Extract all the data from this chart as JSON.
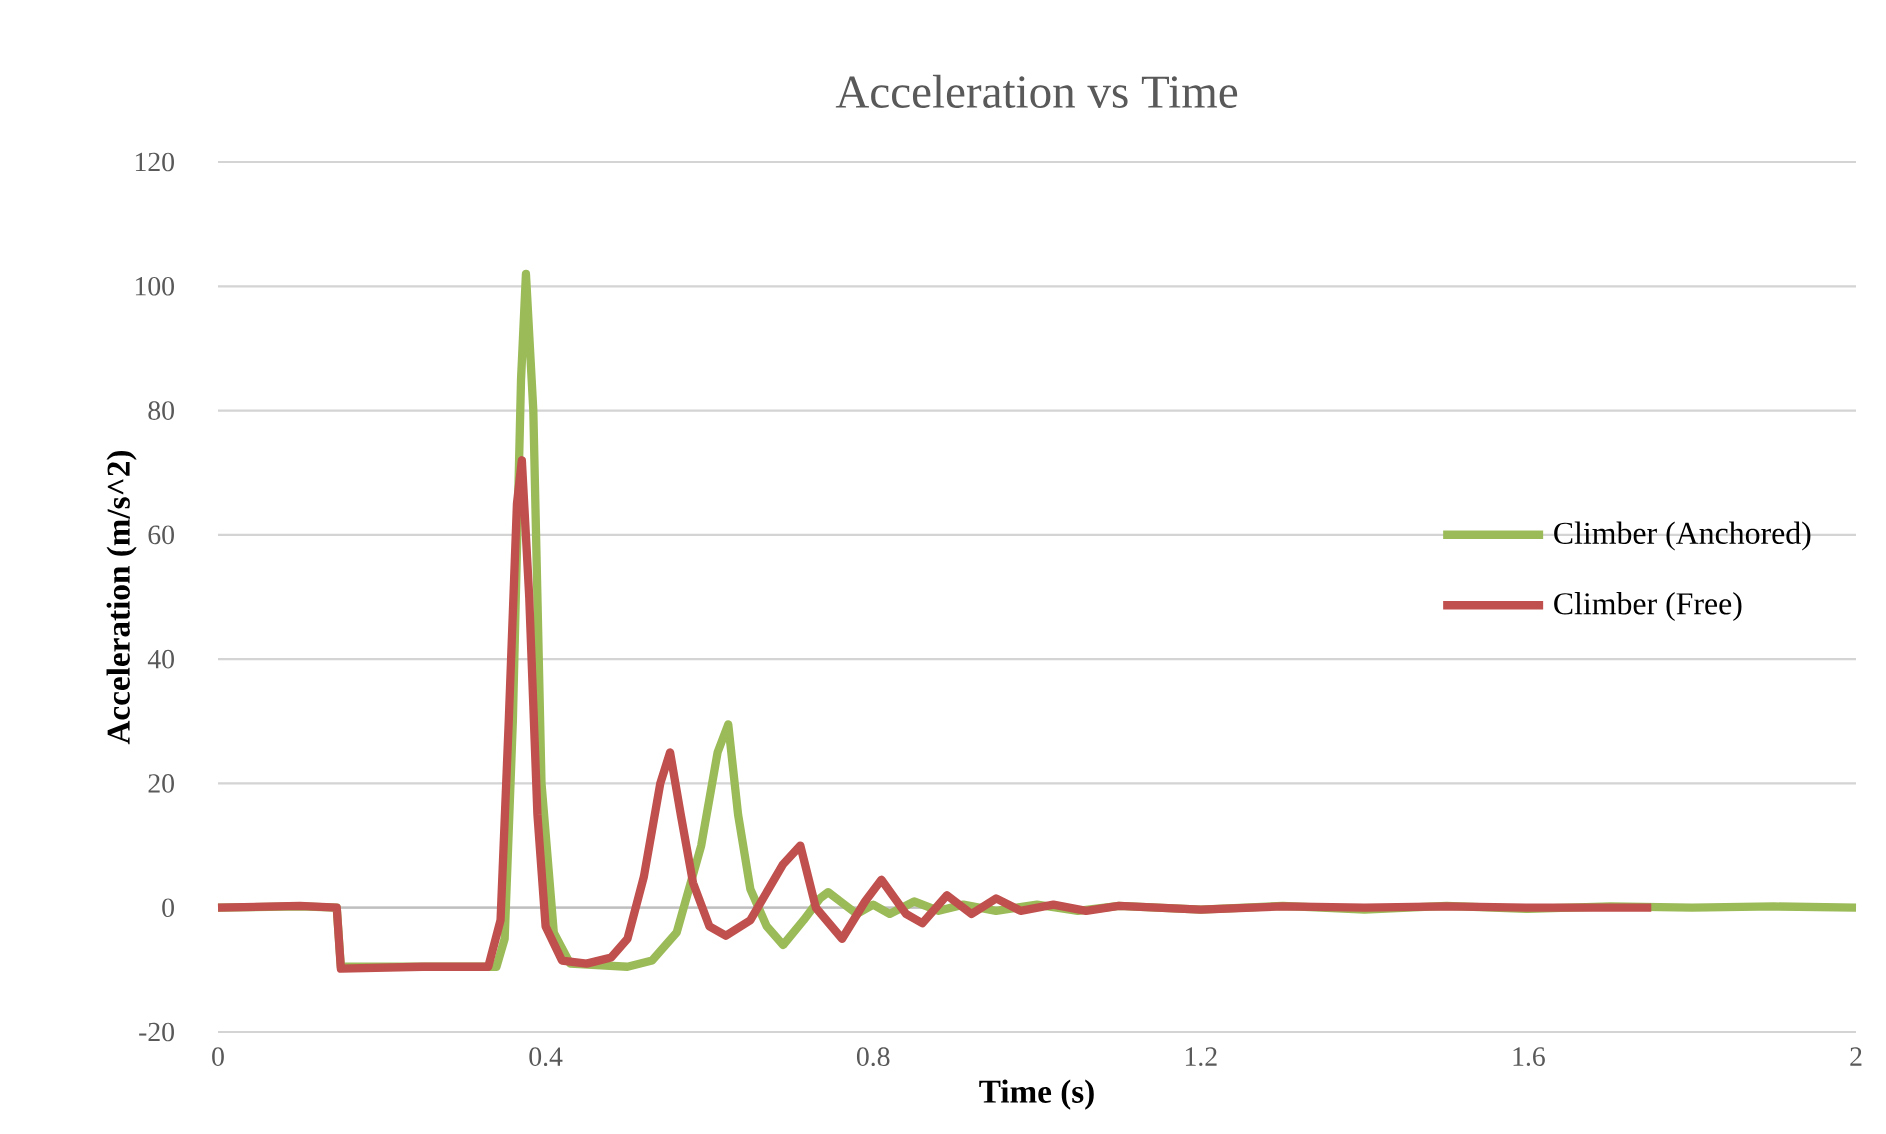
{
  "chart_data": {
    "type": "line",
    "title": "Acceleration vs Time",
    "xlabel": "Time (s)",
    "ylabel": "Acceleration (m/s^2)",
    "xlim": [
      0,
      2
    ],
    "xticks": [
      0,
      0.4,
      0.8,
      1.2,
      1.6,
      2
    ],
    "ylim": [
      -20,
      120
    ],
    "yticks": [
      -20,
      0,
      20,
      40,
      60,
      80,
      100,
      120
    ],
    "grid": "y",
    "legend": "right",
    "marker": "none",
    "line_style": "solid",
    "series": [
      {
        "name": "Climber (Anchored)",
        "color": "#9bbb59",
        "x": [
          0,
          0.1,
          0.145,
          0.15,
          0.25,
          0.34,
          0.35,
          0.36,
          0.37,
          0.376,
          0.385,
          0.395,
          0.41,
          0.43,
          0.5,
          0.53,
          0.56,
          0.59,
          0.61,
          0.623,
          0.635,
          0.65,
          0.67,
          0.69,
          0.715,
          0.735,
          0.745,
          0.76,
          0.78,
          0.8,
          0.82,
          0.85,
          0.88,
          0.91,
          0.95,
          1.0,
          1.05,
          1.1,
          1.2,
          1.3,
          1.4,
          1.5,
          1.6,
          1.7,
          1.8,
          1.9,
          2.0
        ],
        "values": [
          0,
          0.2,
          0,
          -9.5,
          -9.5,
          -9.5,
          -5,
          30,
          85,
          102,
          80,
          20,
          -4,
          -9,
          -9.5,
          -8.5,
          -4,
          10,
          25,
          29.5,
          15,
          3,
          -3,
          -6,
          -2,
          1.5,
          2.5,
          1,
          -1,
          0.5,
          -1,
          1,
          -0.5,
          0.5,
          -0.5,
          0.5,
          -0.5,
          0.3,
          -0.3,
          0.3,
          -0.3,
          0.3,
          -0.2,
          0.2,
          0,
          0.2,
          0
        ]
      },
      {
        "name": "Climber (Free)",
        "color": "#c0504d",
        "x": [
          0,
          0.1,
          0.145,
          0.15,
          0.25,
          0.33,
          0.345,
          0.355,
          0.365,
          0.371,
          0.38,
          0.39,
          0.4,
          0.42,
          0.45,
          0.48,
          0.5,
          0.52,
          0.54,
          0.552,
          0.565,
          0.58,
          0.6,
          0.62,
          0.65,
          0.69,
          0.711,
          0.73,
          0.762,
          0.79,
          0.81,
          0.84,
          0.86,
          0.89,
          0.92,
          0.95,
          0.98,
          1.02,
          1.06,
          1.1,
          1.2,
          1.3,
          1.4,
          1.5,
          1.6,
          1.75
        ],
        "values": [
          0,
          0.3,
          0,
          -9.8,
          -9.5,
          -9.5,
          -2,
          30,
          65,
          72,
          50,
          15,
          -3,
          -8.5,
          -9,
          -8,
          -5,
          5,
          20,
          25,
          15,
          4,
          -3,
          -4.5,
          -2,
          7,
          10,
          0,
          -5,
          1,
          4.5,
          -1,
          -2.5,
          2,
          -1,
          1.5,
          -0.5,
          0.5,
          -0.5,
          0.3,
          -0.3,
          0.2,
          0,
          0.2,
          0,
          0
        ]
      }
    ]
  }
}
